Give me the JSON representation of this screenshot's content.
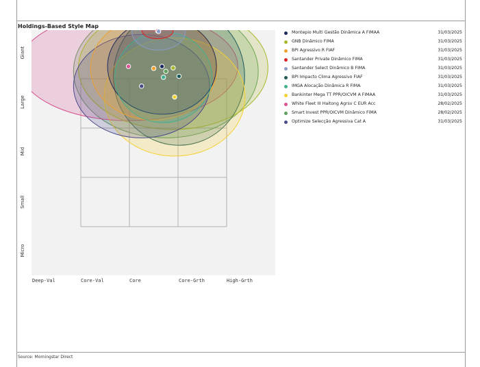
{
  "title": "Holdings-Based Style Map",
  "source": "Source: Morningstar Direct",
  "chart_data": {
    "type": "scatter",
    "title": "Holdings-Based Style Map",
    "x_axis_labels": [
      "Deep-Val",
      "Core-Val",
      "Core",
      "Core-Grth",
      "High-Grth"
    ],
    "y_axis_labels": [
      "Micro",
      "Small",
      "Mid",
      "Large",
      "Giant"
    ],
    "x_range": [
      -1.5,
      3.5
    ],
    "y_range": [
      -1.0,
      3.9
    ],
    "series": [
      {
        "name": "Montepio Multi Gestão Dinâmica A FIMAA",
        "date": "31/03/2025",
        "color": "#1b2a5e",
        "x": 1.67,
        "y": 3.25,
        "rx": 1.12,
        "ry": 0.97
      },
      {
        "name": "GNB Dinâmico FIMA",
        "date": "31/03/2025",
        "color": "#a8b82c",
        "x": 1.9,
        "y": 3.22,
        "rx": 1.95,
        "ry": 1.25
      },
      {
        "name": "BPI Agressivo R FIAF",
        "date": "31/03/2025",
        "color": "#f0a030",
        "x": 1.5,
        "y": 3.21,
        "rx": 1.3,
        "ry": 1.05
      },
      {
        "name": "Santander Private Dinâmico FIMA",
        "date": "31/03/2025",
        "color": "#e02020",
        "x": 1.58,
        "y": 3.97,
        "rx": 0.32,
        "ry": 0.16
      },
      {
        "name": "Santander Select Dinâmico B FIMA",
        "date": "31/03/2025",
        "color": "#8a9cc8",
        "x": 1.6,
        "y": 3.96,
        "rx": 0.55,
        "ry": 0.38
      },
      {
        "name": "BPI Impacto Clima Agressivo FIAF",
        "date": "31/03/2025",
        "color": "#1e5a5a",
        "x": 2.02,
        "y": 3.05,
        "rx": 1.35,
        "ry": 1.4
      },
      {
        "name": "IMGA Alocação Dinâmica R FIMA",
        "date": "31/03/2025",
        "color": "#40b090",
        "x": 1.7,
        "y": 3.03,
        "rx": 1.0,
        "ry": 0.92
      },
      {
        "name": "Bankinter Mega TT PPR/OICVM A FIMAA",
        "date": "31/03/2025",
        "color": "#f5d030",
        "x": 1.93,
        "y": 2.63,
        "rx": 1.45,
        "ry": 1.2
      },
      {
        "name": "White Fleet III Haitong Agrsv C EUR Acc",
        "date": "28/02/2025",
        "color": "#d85090",
        "x": 0.98,
        "y": 3.25,
        "rx": 2.25,
        "ry": 1.1
      },
      {
        "name": "Smart Invest PPR/OICVM Dinâmico FIMA",
        "date": "28/02/2025",
        "color": "#60a060",
        "x": 1.75,
        "y": 3.15,
        "rx": 1.9,
        "ry": 1.35
      },
      {
        "name": "Optimize Selecção Agressiva Cat A",
        "date": "31/03/2025",
        "color": "#4a4a8a",
        "x": 1.25,
        "y": 2.85,
        "rx": 1.4,
        "ry": 1.05
      }
    ],
    "grid": true,
    "legend_placement": "right"
  }
}
